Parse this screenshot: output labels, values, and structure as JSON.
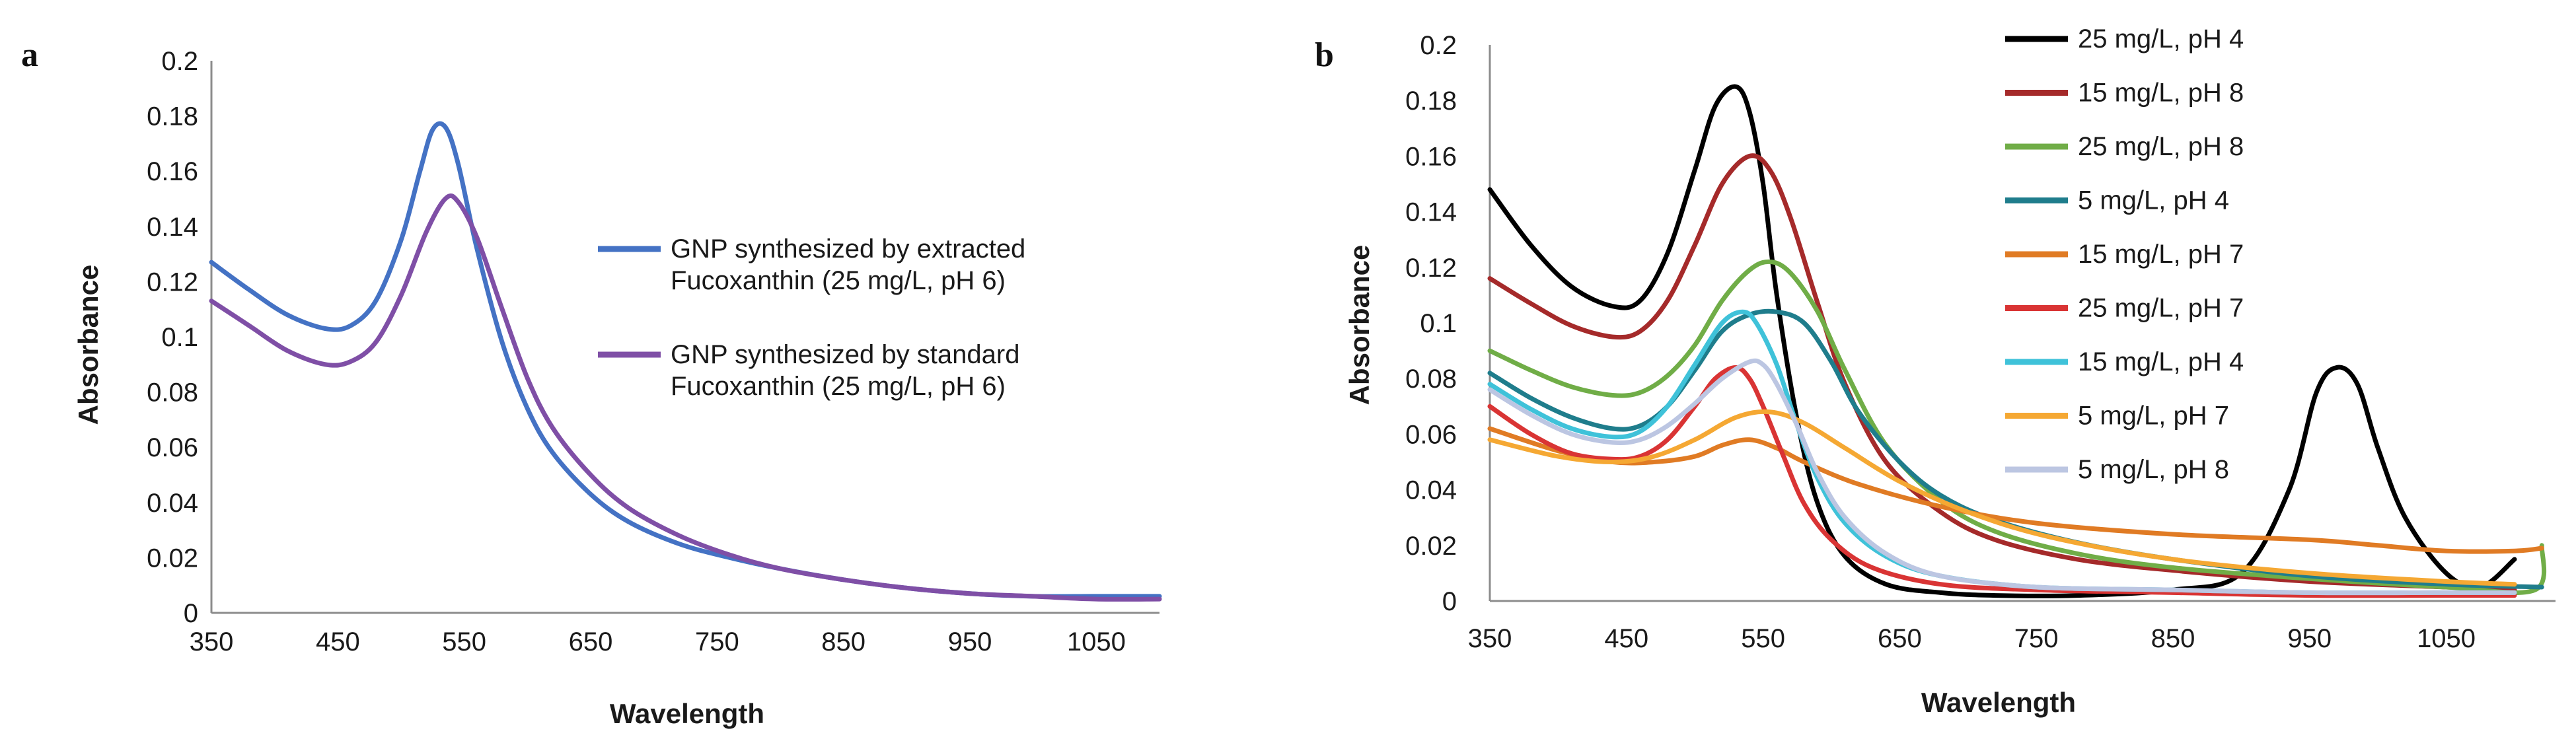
{
  "chart_data": [
    {
      "panel_label": "a",
      "type": "line",
      "xlabel": "Wavelength",
      "ylabel": "Absorbance",
      "xlim": [
        350,
        1100
      ],
      "ylim": [
        0,
        0.2
      ],
      "xticks": [
        "350",
        "450",
        "550",
        "650",
        "750",
        "850",
        "950",
        "1050"
      ],
      "yticks": [
        "0",
        "0.02",
        "0.04",
        "0.06",
        "0.08",
        "0.1",
        "0.12",
        "0.14",
        "0.16",
        "0.18",
        "0.2"
      ],
      "legend_position": "right",
      "series": [
        {
          "name_lines": [
            "GNP synthesized by extracted",
            "Fucoxanthin (25 mg/L, pH 6)"
          ],
          "color": "#4472C4",
          "x": [
            350,
            380,
            410,
            440,
            460,
            480,
            500,
            515,
            525,
            535,
            545,
            560,
            580,
            600,
            620,
            650,
            680,
            720,
            760,
            800,
            850,
            900,
            950,
            1000,
            1050,
            1100
          ],
          "y": [
            0.127,
            0.117,
            0.108,
            0.103,
            0.104,
            0.113,
            0.135,
            0.16,
            0.175,
            0.176,
            0.163,
            0.132,
            0.098,
            0.074,
            0.058,
            0.043,
            0.033,
            0.025,
            0.02,
            0.016,
            0.012,
            0.009,
            0.007,
            0.006,
            0.006,
            0.006
          ]
        },
        {
          "name_lines": [
            "GNP synthesized by standard",
            "Fucoxanthin (25 mg/L, pH 6)"
          ],
          "color": "#7F4FA6",
          "x": [
            350,
            380,
            410,
            440,
            460,
            480,
            500,
            520,
            535,
            545,
            560,
            580,
            600,
            620,
            650,
            680,
            720,
            760,
            800,
            850,
            900,
            950,
            1000,
            1050,
            1100
          ],
          "y": [
            0.113,
            0.104,
            0.095,
            0.09,
            0.091,
            0.098,
            0.115,
            0.138,
            0.15,
            0.149,
            0.136,
            0.11,
            0.085,
            0.067,
            0.05,
            0.038,
            0.028,
            0.021,
            0.016,
            0.012,
            0.009,
            0.007,
            0.006,
            0.005,
            0.005
          ]
        }
      ]
    },
    {
      "panel_label": "b",
      "type": "line",
      "xlabel": "Wavelength",
      "ylabel": "Absorbance",
      "xlim": [
        350,
        1130
      ],
      "ylim": [
        0,
        0.2
      ],
      "xticks": [
        "350",
        "450",
        "550",
        "650",
        "750",
        "850",
        "950",
        "1050"
      ],
      "yticks": [
        "0",
        "0.02",
        "0.04",
        "0.06",
        "0.08",
        "0.1",
        "0.12",
        "0.14",
        "0.16",
        "0.18",
        "0.2"
      ],
      "legend_position": "top-right",
      "series": [
        {
          "name": "25 mg/L, pH 4",
          "color": "#000000",
          "x": [
            350,
            380,
            410,
            440,
            460,
            480,
            500,
            515,
            530,
            540,
            550,
            560,
            575,
            590,
            610,
            640,
            680,
            720,
            780,
            850,
            900,
            935,
            955,
            970,
            985,
            1000,
            1020,
            1050,
            1075,
            1100
          ],
          "y": [
            0.148,
            0.128,
            0.113,
            0.106,
            0.108,
            0.125,
            0.155,
            0.178,
            0.185,
            0.176,
            0.15,
            0.11,
            0.065,
            0.035,
            0.016,
            0.006,
            0.003,
            0.002,
            0.002,
            0.004,
            0.01,
            0.04,
            0.075,
            0.084,
            0.078,
            0.055,
            0.03,
            0.01,
            0.005,
            0.015
          ]
        },
        {
          "name": "15 mg/L, pH 8",
          "color": "#A52A2A",
          "x": [
            350,
            380,
            410,
            440,
            460,
            480,
            500,
            520,
            540,
            555,
            570,
            590,
            610,
            640,
            680,
            720,
            780,
            850,
            950,
            1050,
            1100
          ],
          "y": [
            0.116,
            0.107,
            0.099,
            0.095,
            0.097,
            0.108,
            0.128,
            0.15,
            0.16,
            0.155,
            0.138,
            0.107,
            0.078,
            0.05,
            0.032,
            0.022,
            0.015,
            0.011,
            0.007,
            0.005,
            0.004
          ]
        },
        {
          "name": "25 mg/L, pH 8",
          "color": "#70AD47",
          "x": [
            350,
            380,
            410,
            440,
            460,
            480,
            500,
            520,
            540,
            555,
            570,
            590,
            610,
            640,
            680,
            720,
            780,
            850,
            950,
            1050,
            1115,
            1120
          ],
          "y": [
            0.09,
            0.083,
            0.077,
            0.074,
            0.075,
            0.081,
            0.092,
            0.108,
            0.119,
            0.122,
            0.118,
            0.104,
            0.083,
            0.056,
            0.036,
            0.025,
            0.017,
            0.012,
            0.008,
            0.005,
            0.004,
            0.02
          ]
        },
        {
          "name": "5 mg/L, pH 4",
          "color": "#1F7D8C",
          "x": [
            350,
            380,
            410,
            440,
            460,
            480,
            500,
            520,
            540,
            560,
            580,
            600,
            620,
            650,
            680,
            720,
            780,
            850,
            950,
            1050,
            1120
          ],
          "y": [
            0.082,
            0.073,
            0.066,
            0.062,
            0.063,
            0.07,
            0.083,
            0.097,
            0.103,
            0.104,
            0.1,
            0.086,
            0.068,
            0.05,
            0.038,
            0.029,
            0.021,
            0.015,
            0.009,
            0.006,
            0.005
          ]
        },
        {
          "name": "15 mg/L, pH 7",
          "color": "#E07B24",
          "x": [
            350,
            400,
            440,
            470,
            500,
            520,
            540,
            560,
            580,
            620,
            680,
            750,
            850,
            950,
            1000,
            1050,
            1100,
            1120
          ],
          "y": [
            0.062,
            0.054,
            0.05,
            0.05,
            0.052,
            0.056,
            0.058,
            0.055,
            0.05,
            0.042,
            0.034,
            0.028,
            0.024,
            0.022,
            0.02,
            0.018,
            0.018,
            0.019
          ]
        },
        {
          "name": "25 mg/L, pH 7",
          "color": "#D93434",
          "x": [
            350,
            380,
            410,
            440,
            460,
            480,
            500,
            515,
            530,
            540,
            550,
            565,
            580,
            600,
            630,
            680,
            750,
            850,
            950,
            1050,
            1100
          ],
          "y": [
            0.07,
            0.06,
            0.053,
            0.051,
            0.052,
            0.058,
            0.07,
            0.08,
            0.084,
            0.08,
            0.07,
            0.052,
            0.035,
            0.022,
            0.012,
            0.006,
            0.004,
            0.003,
            0.002,
            0.002,
            0.002
          ]
        },
        {
          "name": "15 mg/L, pH 4",
          "color": "#3FC2D9",
          "x": [
            350,
            380,
            410,
            440,
            460,
            480,
            500,
            520,
            535,
            545,
            560,
            575,
            590,
            610,
            640,
            680,
            750,
            850,
            950,
            1050,
            1100
          ],
          "y": [
            0.078,
            0.069,
            0.062,
            0.059,
            0.061,
            0.07,
            0.085,
            0.1,
            0.104,
            0.1,
            0.085,
            0.063,
            0.044,
            0.028,
            0.016,
            0.009,
            0.005,
            0.004,
            0.003,
            0.003,
            0.003
          ]
        },
        {
          "name": "5 mg/L, pH 7",
          "color": "#F5A833",
          "x": [
            350,
            400,
            440,
            470,
            500,
            530,
            555,
            580,
            610,
            650,
            700,
            760,
            850,
            950,
            1050,
            1100
          ],
          "y": [
            0.058,
            0.052,
            0.05,
            0.052,
            0.058,
            0.066,
            0.068,
            0.064,
            0.055,
            0.043,
            0.032,
            0.023,
            0.015,
            0.01,
            0.007,
            0.006
          ]
        },
        {
          "name": "5 mg/L, pH 8",
          "color": "#BCC6E2",
          "x": [
            350,
            380,
            410,
            440,
            460,
            480,
            500,
            520,
            540,
            550,
            560,
            575,
            590,
            610,
            640,
            680,
            750,
            850,
            950,
            1050,
            1100
          ],
          "y": [
            0.076,
            0.067,
            0.06,
            0.057,
            0.058,
            0.063,
            0.071,
            0.08,
            0.086,
            0.085,
            0.078,
            0.063,
            0.046,
            0.03,
            0.017,
            0.009,
            0.005,
            0.004,
            0.003,
            0.003,
            0.003
          ]
        }
      ]
    }
  ]
}
